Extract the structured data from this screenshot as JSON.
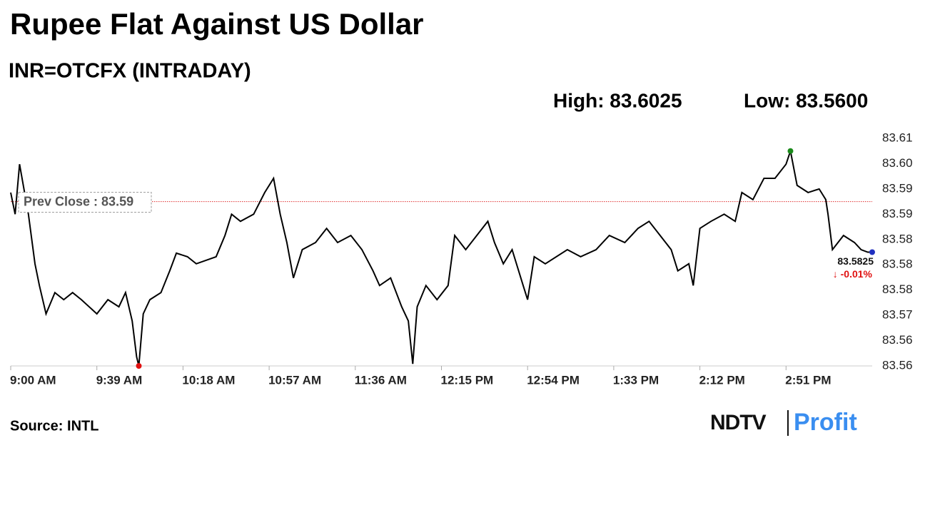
{
  "chart_data": {
    "type": "line",
    "title": "Rupee Flat Against US Dollar",
    "subtitle": "INR=OTCFX (INTRADAY)",
    "high": {
      "value": 83.6025,
      "label": "High: 83.6025",
      "color": "#1a8a1a"
    },
    "low": {
      "value": 83.56,
      "label": "Low: 83.5600",
      "color": "#e01010"
    },
    "prev_close": {
      "value": 83.5925,
      "label": "Prev Close : 83.59",
      "color": "#e03030"
    },
    "last_value": 83.5825,
    "last_color": "#2030c0",
    "change": {
      "value": -0.01,
      "label": "↓ -0.01%",
      "color": "#e01010"
    },
    "source": "Source: INTL",
    "logo": {
      "left": "NDTV",
      "right": "Profit"
    },
    "x": [
      "9:00 AM",
      "9:02 AM",
      "9:04 AM",
      "9:08 AM",
      "9:11 AM",
      "9:13 AM",
      "9:16 AM",
      "9:20 AM",
      "9:24 AM",
      "9:28 AM",
      "9:32 AM",
      "9:39 AM",
      "9:44 AM",
      "9:49 AM",
      "9:52 AM",
      "9:55 AM",
      "9:57 AM",
      "9:58 AM",
      "10:00 AM",
      "10:03 AM",
      "10:08 AM",
      "10:12 AM",
      "10:15 AM",
      "10:20 AM",
      "10:24 AM",
      "10:33 AM",
      "10:37 AM",
      "10:40 AM",
      "10:44 AM",
      "10:50 AM",
      "10:55 AM",
      "10:59 AM",
      "11:02 AM",
      "11:05 AM",
      "11:08 AM",
      "11:12 AM",
      "11:18 AM",
      "11:23 AM",
      "11:28 AM",
      "11:34 AM",
      "11:39 AM",
      "11:44 AM",
      "11:47 AM",
      "11:52 AM",
      "11:57 AM",
      "12:00 PM",
      "12:02 PM",
      "12:04 PM",
      "12:08 PM",
      "12:13 PM",
      "12:18 PM",
      "12:21 PM",
      "12:26 PM",
      "12:31 PM",
      "12:36 PM",
      "12:39 PM",
      "12:43 PM",
      "12:47 PM",
      "12:52 PM",
      "12:54 PM",
      "12:57 PM",
      "1:02 PM",
      "1:12 PM",
      "1:18 PM",
      "1:25 PM",
      "1:31 PM",
      "1:38 PM",
      "1:44 PM",
      "1:49 PM",
      "1:54 PM",
      "1:59 PM",
      "2:02 PM",
      "2:07 PM",
      "2:09 PM",
      "2:12 PM",
      "2:17 PM",
      "2:23 PM",
      "2:28 PM",
      "2:31 PM",
      "2:36 PM",
      "2:41 PM",
      "2:46 PM",
      "2:51 PM",
      "2:53 PM",
      "2:56 PM",
      "3:01 PM",
      "3:06 PM",
      "3:09 PM",
      "3:10 PM",
      "3:12 PM",
      "3:17 PM",
      "3:22 PM",
      "3:25 PM",
      "3:28 PM",
      "3:30 PM"
    ],
    "series": [
      {
        "name": "INR=OTCFX",
        "color": "#000000",
        "values": [
          83.5943,
          83.59,
          83.5999,
          83.59,
          83.5802,
          83.5759,
          83.5703,
          83.5745,
          83.5731,
          83.5745,
          83.5731,
          83.5703,
          83.5731,
          83.5717,
          83.5745,
          83.5689,
          83.5618,
          83.56,
          83.5703,
          83.5731,
          83.5745,
          83.5788,
          83.5823,
          83.5816,
          83.5802,
          83.5816,
          83.5858,
          83.59,
          83.5886,
          83.59,
          83.5943,
          83.5971,
          83.59,
          83.5844,
          83.5774,
          83.583,
          83.5844,
          83.5872,
          83.5844,
          83.5858,
          83.583,
          83.5788,
          83.5759,
          83.5774,
          83.5717,
          83.5689,
          83.5604,
          83.5717,
          83.5759,
          83.5731,
          83.5759,
          83.5858,
          83.583,
          83.5858,
          83.5886,
          83.5844,
          83.5802,
          83.583,
          83.5759,
          83.5731,
          83.5816,
          83.5802,
          83.583,
          83.5816,
          83.583,
          83.5858,
          83.5844,
          83.5872,
          83.5886,
          83.5858,
          83.583,
          83.5788,
          83.5802,
          83.5759,
          83.5872,
          83.5886,
          83.59,
          83.5886,
          83.5943,
          83.5929,
          83.5971,
          83.5971,
          83.5999,
          83.6025,
          83.5957,
          83.5943,
          83.595,
          83.5929,
          83.59,
          83.583,
          83.5858,
          83.5844,
          83.583,
          83.5825,
          83.5825
        ]
      }
    ],
    "xlim": [
      "9:00 AM",
      "3:30 PM"
    ],
    "xticks": [
      "9:00 AM",
      "9:39 AM",
      "10:18 AM",
      "10:57 AM",
      "11:36 AM",
      "12:15 PM",
      "12:54 PM",
      "1:33 PM",
      "2:12 PM",
      "2:51 PM"
    ],
    "ylim": [
      83.56,
      83.605
    ],
    "yticks": [
      {
        "value": 83.605,
        "label": "83.61"
      },
      {
        "value": 83.6,
        "label": "83.60"
      },
      {
        "value": 83.595,
        "label": "83.59"
      },
      {
        "value": 83.59,
        "label": "83.59"
      },
      {
        "value": 83.585,
        "label": "83.58"
      },
      {
        "value": 83.58,
        "label": "83.58"
      },
      {
        "value": 83.575,
        "label": "83.58"
      },
      {
        "value": 83.57,
        "label": "83.57"
      },
      {
        "value": 83.565,
        "label": "83.56"
      },
      {
        "value": 83.56,
        "label": "83.56"
      }
    ],
    "grid": false
  }
}
